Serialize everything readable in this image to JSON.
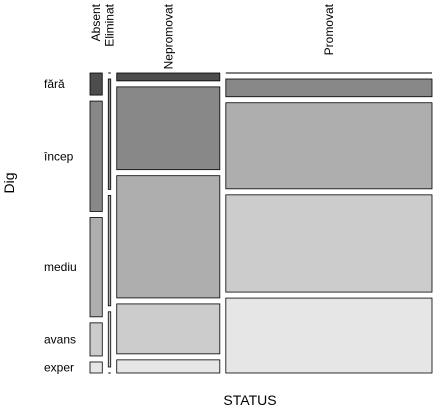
{
  "chart_data": {
    "type": "mosaic",
    "x_label": "STATUS",
    "y_label": "Dig",
    "columns": [
      "Absent",
      "Eliminat",
      "Nepromovat",
      "Promovat"
    ],
    "rows": [
      "fără",
      "încep",
      "mediu",
      "avans",
      "exper"
    ],
    "row_colors": [
      "#4d4d4d",
      "#888888",
      "#aeaeae",
      "#cccccc",
      "#e6e6e6"
    ],
    "values": [
      [
        2,
        10,
        9,
        3,
        1
      ],
      [
        0,
        2,
        2,
        1,
        0
      ],
      [
        6,
        63,
        93,
        38,
        10
      ],
      [
        0,
        27,
        131,
        148,
        114
      ]
    ]
  }
}
